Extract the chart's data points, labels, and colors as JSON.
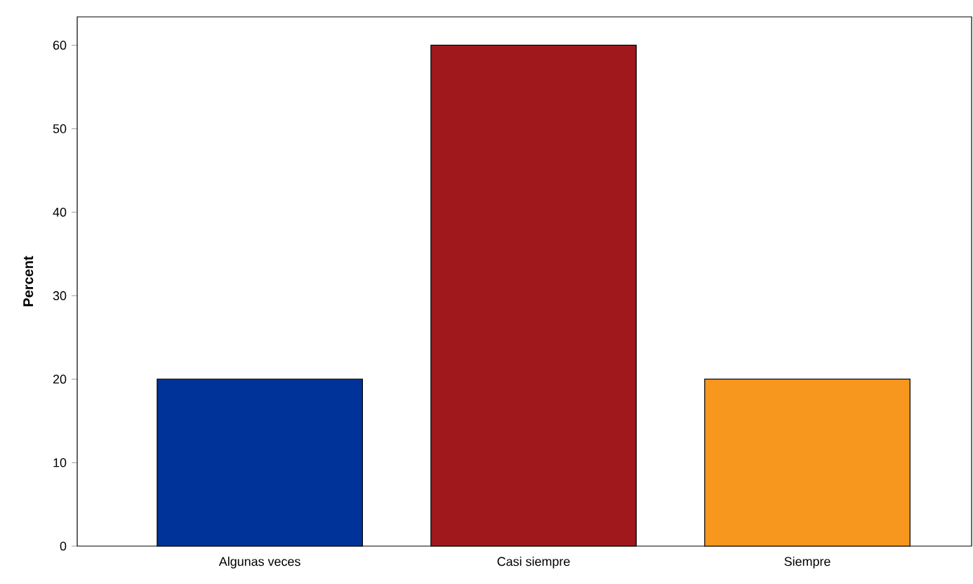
{
  "chart_data": {
    "type": "bar",
    "ylabel": "Percent",
    "categories": [
      "Algunas veces",
      "Casi siempre",
      "Siempre"
    ],
    "values": [
      20,
      60,
      20
    ],
    "colors": [
      "#003399",
      "#a0171c",
      "#f7971e"
    ],
    "ylim": [
      0,
      63.4
    ],
    "yticks": [
      0,
      10,
      20,
      30,
      40,
      50,
      60
    ],
    "grid": false
  }
}
